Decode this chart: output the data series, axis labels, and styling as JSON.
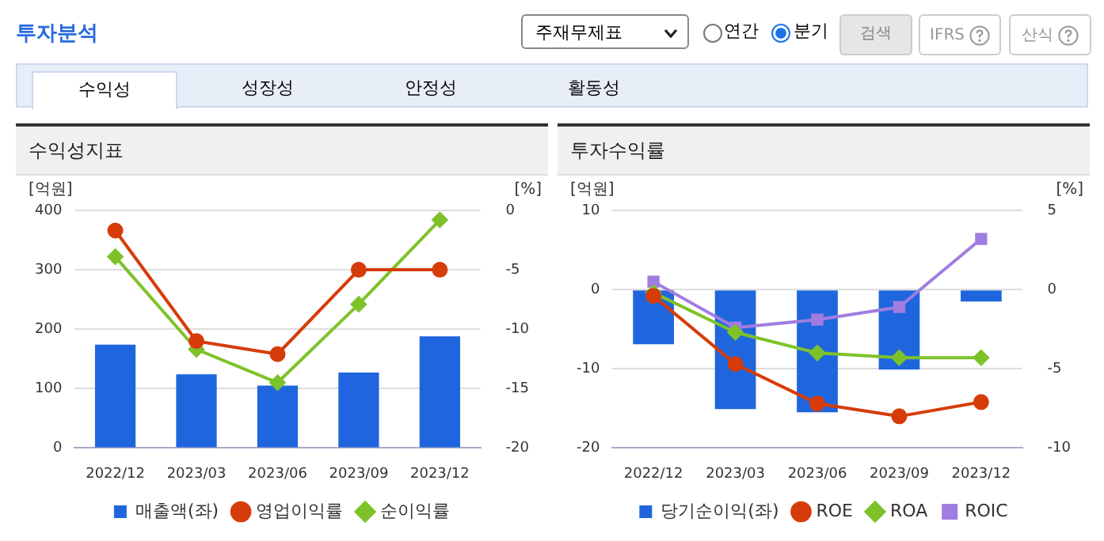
{
  "chart_data": [
    {
      "type": "bar",
      "title": "수익성지표",
      "ylabel": "[억원]",
      "y2label": "[%]",
      "annotations": [
        "투자분석",
        "주재무제표",
        "연간",
        "분기",
        "검색",
        "IFRS",
        "산식",
        "수익성",
        "성장성",
        "안정성",
        "활동성"
      ],
      "categories": [
        "2022/12",
        "2023/03",
        "2023/06",
        "2023/09",
        "2023/12"
      ],
      "series": [
        {
          "name": "매출액(좌)",
          "color": "#1f66de",
          "values": [
            174,
            124,
            105,
            127,
            188
          ]
        },
        {
          "name": "영업이익률",
          "type": "line",
          "axis": "y2",
          "marker": "circle",
          "color": "#d63c0a",
          "values": [
            -1.7,
            -11.0,
            -12.1,
            -5.0,
            -5.0
          ]
        },
        {
          "name": "순이익률",
          "type": "line",
          "axis": "y2",
          "marker": "diamond",
          "color": "#7ec22a",
          "values": [
            -3.9,
            -11.7,
            -14.5,
            -7.9,
            -0.8
          ]
        }
      ],
      "ylim": [
        0,
        400
      ],
      "yticks": [
        0,
        100,
        200,
        300,
        400
      ],
      "y2lim": [
        -20,
        0
      ],
      "y2ticks": [
        -20,
        -15,
        -10,
        -5,
        0
      ],
      "grid": "y",
      "legend": "bottom"
    },
    {
      "type": "bar",
      "title": "투자수익률",
      "ylabel": "[억원]",
      "y2label": "[%]",
      "categories": [
        "2022/12",
        "2023/03",
        "2023/06",
        "2023/09",
        "2023/12"
      ],
      "series": [
        {
          "name": "당기순이익(좌)",
          "color": "#1f66de",
          "values": [
            -6.9,
            -15.1,
            -15.5,
            -10.1,
            -1.5
          ]
        },
        {
          "name": "ROE",
          "type": "line",
          "axis": "y2",
          "marker": "circle",
          "color": "#d63c0a",
          "values": [
            -0.4,
            -4.7,
            -7.2,
            -8.0,
            -7.1
          ]
        },
        {
          "name": "ROA",
          "type": "line",
          "axis": "y2",
          "marker": "diamond",
          "color": "#7ec22a",
          "values": [
            -0.2,
            -2.7,
            -4.0,
            -4.3,
            -4.3
          ]
        },
        {
          "name": "ROIC",
          "type": "line",
          "axis": "y2",
          "marker": "square",
          "color": "#a07de0",
          "values": [
            0.5,
            -2.4,
            -1.9,
            -1.1,
            3.2
          ]
        }
      ],
      "ylim": [
        -20,
        10
      ],
      "yticks": [
        -20,
        -10,
        0,
        10
      ],
      "y2lim": [
        -10,
        5
      ],
      "y2ticks": [
        -10,
        -5,
        0,
        5
      ],
      "grid": "y",
      "legend": "bottom"
    }
  ]
}
